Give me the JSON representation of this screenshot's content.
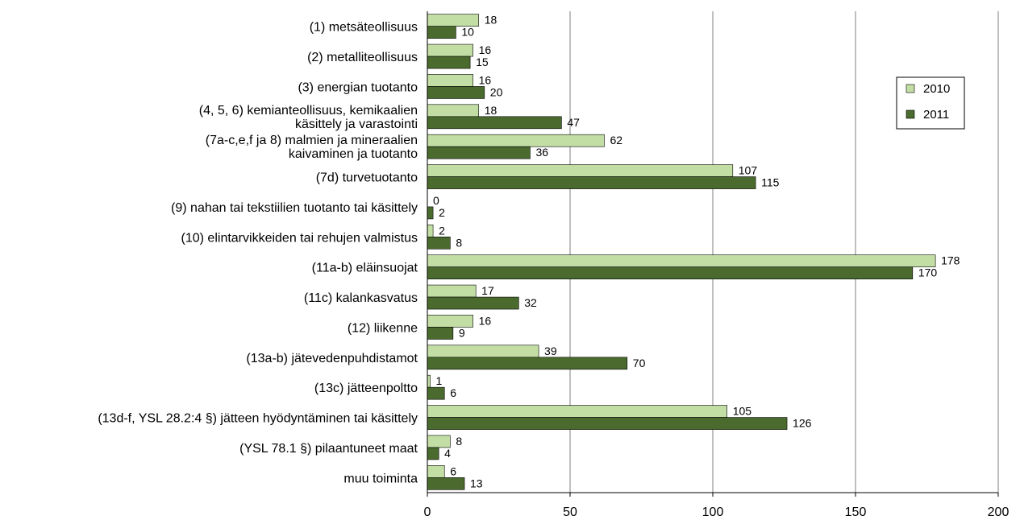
{
  "chart_data": {
    "type": "bar",
    "orientation": "horizontal",
    "categories": [
      [
        "(1) metsäteollisuus"
      ],
      [
        "(2) metalliteollisuus"
      ],
      [
        "(3) energian tuotanto"
      ],
      [
        "(4, 5, 6) kemianteollisuus, kemikaalien",
        "käsittely ja varastointi"
      ],
      [
        "(7a-c,e,f ja 8) malmien ja mineraalien",
        "kaivaminen ja tuotanto"
      ],
      [
        "(7d) turvetuotanto"
      ],
      [
        "(9) nahan tai tekstiilien tuotanto tai käsittely"
      ],
      [
        "(10) elintarvikkeiden tai rehujen valmistus"
      ],
      [
        "(11a-b) eläinsuojat"
      ],
      [
        "(11c) kalankasvatus"
      ],
      [
        "(12) liikenne"
      ],
      [
        "(13a-b) jätevedenpuhdistamot"
      ],
      [
        "(13c) jätteenpoltto"
      ],
      [
        "(13d-f, YSL 28.2:4 §) jätteen hyödyntäminen tai käsittely"
      ],
      [
        "(YSL 78.1 §) pilaantuneet maat"
      ],
      [
        "muu toiminta"
      ]
    ],
    "series": [
      {
        "name": "2010",
        "color": "#c3dea4",
        "values": [
          18,
          16,
          16,
          18,
          62,
          107,
          0,
          2,
          178,
          17,
          16,
          39,
          1,
          105,
          8,
          6
        ]
      },
      {
        "name": "2011",
        "color": "#4a6b2d",
        "values": [
          10,
          15,
          20,
          47,
          36,
          115,
          2,
          8,
          170,
          32,
          9,
          70,
          6,
          126,
          4,
          13
        ]
      }
    ],
    "xlim": [
      0,
      200
    ],
    "xticks": [
      0,
      50,
      100,
      150,
      200
    ],
    "grid": "vertical",
    "legend_position": "right"
  }
}
